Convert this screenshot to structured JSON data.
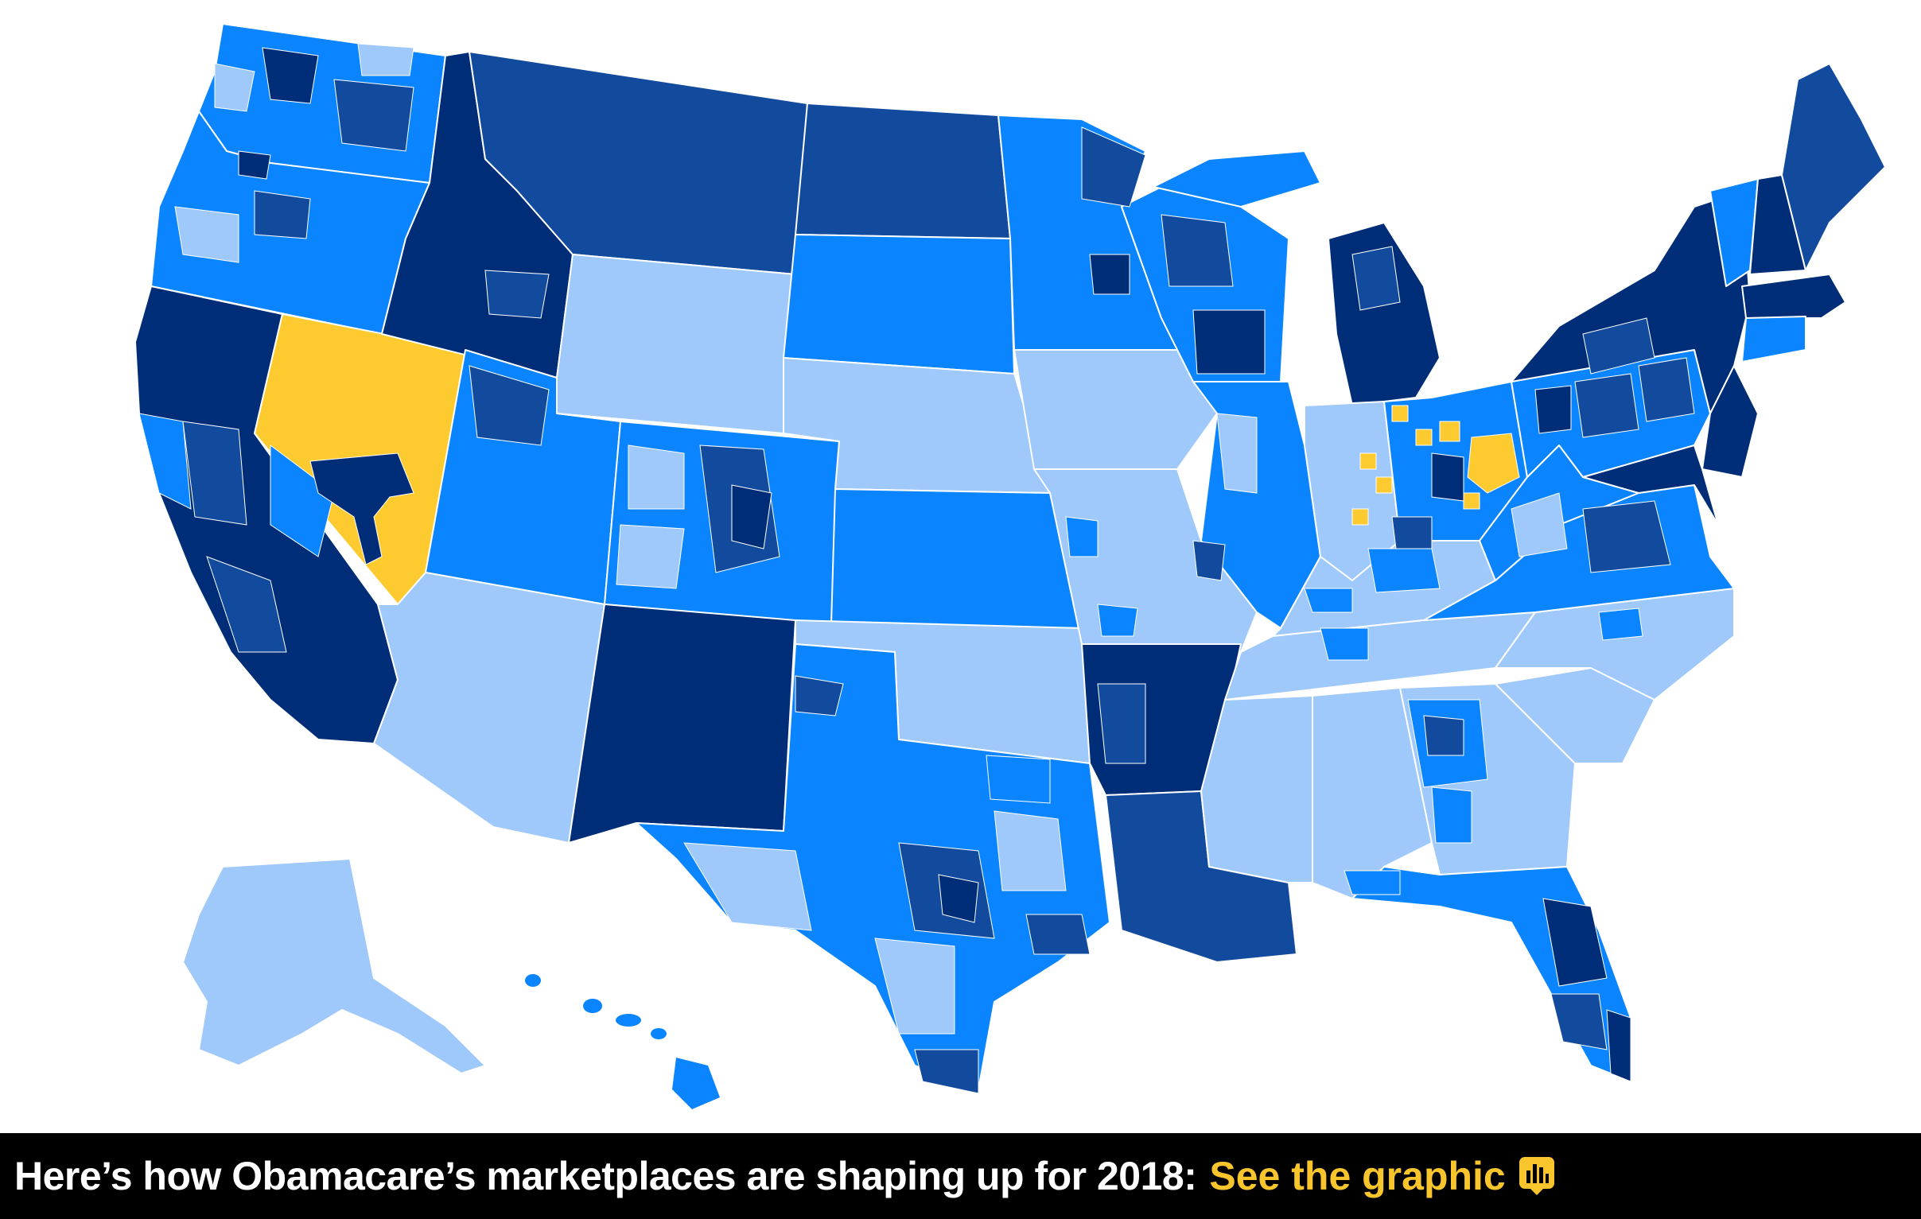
{
  "caption": {
    "text": "Here’s how Obamacare’s marketplaces are shaping up for 2018:",
    "link_label": "See the graphic",
    "link_icon": "bar-chart-bubble-icon"
  },
  "colors": {
    "lightest_blue": "#9fc8fb",
    "medium_blue": "#0a84ff",
    "dark_blue": "#124b9e",
    "darkest_blue": "#002d78",
    "highlight_yellow": "#fdca2f",
    "border_white": "#ffffff",
    "caption_bg": "#000000",
    "caption_link": "#f9c52d"
  }
}
